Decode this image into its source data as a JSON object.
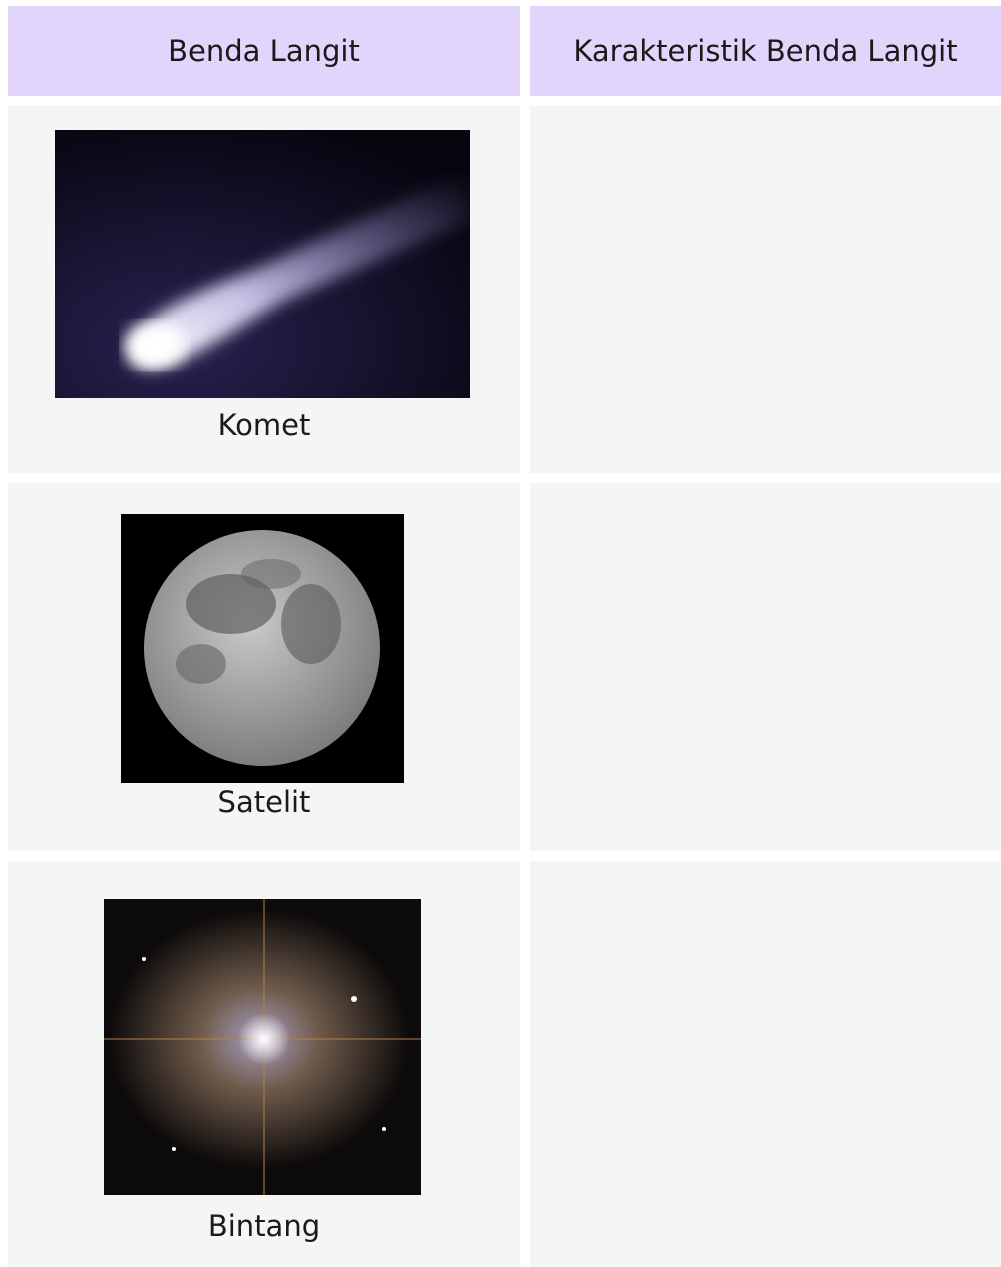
{
  "table": {
    "header": [
      "Benda Langit",
      "Karakteristik Benda Langit"
    ],
    "rows": [
      {
        "object": "Komet"
      },
      {
        "object": "Satelit"
      },
      {
        "object": "Bintang"
      }
    ]
  }
}
